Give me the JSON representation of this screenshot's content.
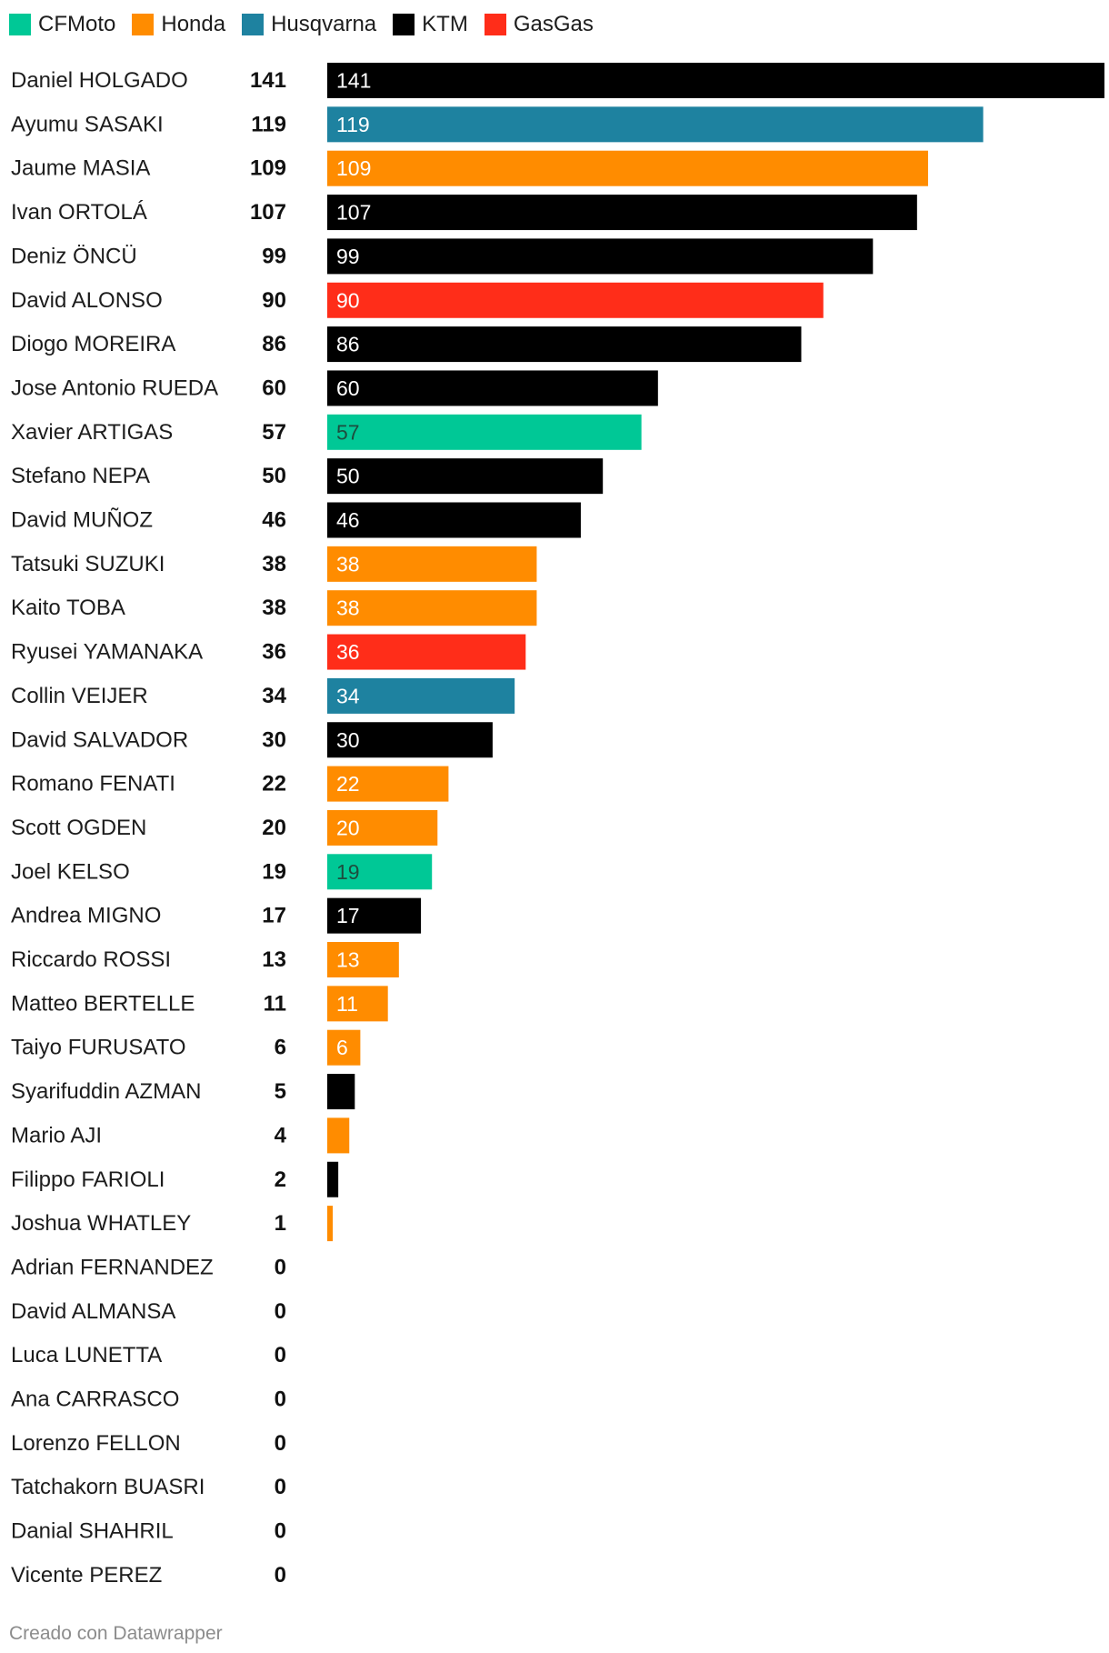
{
  "legend": [
    {
      "name": "CFMoto",
      "color": "#00c896"
    },
    {
      "name": "Honda",
      "color": "#ff8c00"
    },
    {
      "name": "Husqvarna",
      "color": "#1e82a0"
    },
    {
      "name": "KTM",
      "color": "#000000"
    },
    {
      "name": "GasGas",
      "color": "#ff2d19"
    }
  ],
  "chart_data": {
    "type": "bar",
    "orientation": "horizontal",
    "categories": [
      "Daniel HOLGADO",
      "Ayumu SASAKI",
      "Jaume MASIA",
      "Ivan ORTOLÁ",
      "Deniz ÖNCÜ",
      "David ALONSO",
      "Diogo MOREIRA",
      "Jose Antonio RUEDA",
      "Xavier ARTIGAS",
      "Stefano NEPA",
      "David MUÑOZ",
      "Tatsuki SUZUKI",
      "Kaito TOBA",
      "Ryusei YAMANAKA",
      "Collin VEIJER",
      "David SALVADOR",
      "Romano FENATI",
      "Scott OGDEN",
      "Joel KELSO",
      "Andrea MIGNO",
      "Riccardo ROSSI",
      "Matteo BERTELLE",
      "Taiyo FURUSATO",
      "Syarifuddin AZMAN",
      "Mario AJI",
      "Filippo FARIOLI",
      "Joshua WHATLEY",
      "Adrian FERNANDEZ",
      "David ALMANSA",
      "Luca LUNETTA",
      "Ana CARRASCO",
      "Lorenzo FELLON",
      "Tatchakorn BUASRI",
      "Danial SHAHRIL",
      "Vicente PEREZ"
    ],
    "values": [
      141,
      119,
      109,
      107,
      99,
      90,
      86,
      60,
      57,
      50,
      46,
      38,
      38,
      36,
      34,
      30,
      22,
      20,
      19,
      17,
      13,
      11,
      6,
      5,
      4,
      2,
      1,
      0,
      0,
      0,
      0,
      0,
      0,
      0,
      0
    ],
    "manufacturers": [
      "KTM",
      "Husqvarna",
      "Honda",
      "KTM",
      "KTM",
      "GasGas",
      "KTM",
      "KTM",
      "CFMoto",
      "KTM",
      "KTM",
      "Honda",
      "Honda",
      "GasGas",
      "Husqvarna",
      "KTM",
      "Honda",
      "Honda",
      "CFMoto",
      "KTM",
      "Honda",
      "Honda",
      "Honda",
      "KTM",
      "Honda",
      "KTM",
      "Honda",
      "",
      "",
      "",
      "",
      "",
      "",
      "",
      ""
    ],
    "xlim": [
      0,
      141
    ],
    "grid": false,
    "legend_position": "top-left"
  },
  "footer": {
    "credit": "Creado con Datawrapper"
  }
}
